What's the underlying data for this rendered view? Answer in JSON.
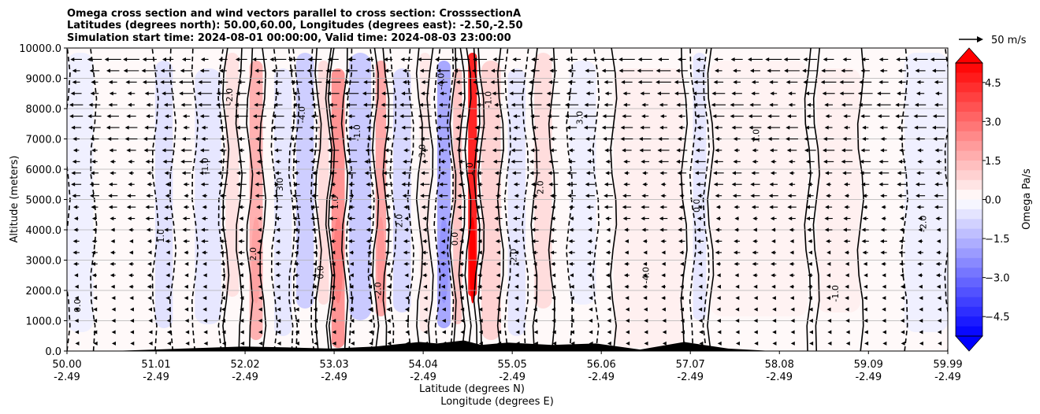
{
  "chart_data": {
    "type": "heatmap",
    "title_lines": [
      "Omega cross section and wind vectors parallel to cross section: CrosssectionA",
      "Latitudes (degrees north): 50.00,60.00, Longitudes (degrees east): -2.50,-2.50",
      "Simulation start time: 2024-08-01 00:00:00, Valid time: 2024-08-03 23:00:00"
    ],
    "xlabel_line1": "Latitude (degrees N)",
    "xlabel_line2": "Longitude (degrees E)",
    "ylabel": "Altitude (meters)",
    "x_ticks": [
      {
        "lat": "50.00",
        "lon": "-2.49"
      },
      {
        "lat": "51.01",
        "lon": "-2.49"
      },
      {
        "lat": "52.02",
        "lon": "-2.49"
      },
      {
        "lat": "53.03",
        "lon": "-2.49"
      },
      {
        "lat": "54.04",
        "lon": "-2.49"
      },
      {
        "lat": "55.05",
        "lon": "-2.49"
      },
      {
        "lat": "56.06",
        "lon": "-2.49"
      },
      {
        "lat": "57.07",
        "lon": "-2.49"
      },
      {
        "lat": "58.08",
        "lon": "-2.49"
      },
      {
        "lat": "59.09",
        "lon": "-2.49"
      },
      {
        "lat": "59.99",
        "lon": "-2.49"
      }
    ],
    "xlim": [
      50.0,
      59.99
    ],
    "y_ticks": [
      "0.0",
      "1000.0",
      "2000.0",
      "3000.0",
      "4000.0",
      "5000.0",
      "6000.0",
      "7000.0",
      "8000.0",
      "9000.0",
      "10000.0"
    ],
    "ylim": [
      0,
      10000
    ],
    "grid": "horizontal",
    "colorbar": {
      "label": "Omega Pa/s",
      "range": [
        -5.25,
        5.25
      ],
      "tick_labels": [
        "4.5",
        "3.0",
        "1.5",
        "0.0",
        "−1.5",
        "−3.0",
        "−4.5"
      ],
      "extend": "both",
      "colors_low_to_high": [
        "#0000ff",
        "#ffffff",
        "#ff0000"
      ]
    },
    "quiver_key": {
      "label": "50 m/s"
    },
    "omega_bands": [
      {
        "lat_from": 50.0,
        "lat_to": 50.3,
        "value": -0.3
      },
      {
        "lat_from": 51.0,
        "lat_to": 51.2,
        "value": -0.6
      },
      {
        "lat_from": 51.45,
        "lat_to": 51.75,
        "value": -0.5
      },
      {
        "lat_from": 51.8,
        "lat_to": 51.95,
        "value": 0.6
      },
      {
        "lat_from": 52.07,
        "lat_to": 52.22,
        "value": 1.6
      },
      {
        "lat_from": 52.35,
        "lat_to": 52.55,
        "value": -0.5
      },
      {
        "lat_from": 52.6,
        "lat_to": 52.8,
        "value": -1.0
      },
      {
        "lat_from": 52.85,
        "lat_to": 52.97,
        "value": 0.7
      },
      {
        "lat_from": 53.0,
        "lat_to": 53.15,
        "value": 2.2
      },
      {
        "lat_from": 53.2,
        "lat_to": 53.45,
        "value": -1.1
      },
      {
        "lat_from": 53.5,
        "lat_to": 53.62,
        "value": 1.8
      },
      {
        "lat_from": 53.7,
        "lat_to": 53.9,
        "value": -0.8
      },
      {
        "lat_from": 54.0,
        "lat_to": 54.12,
        "value": 0.5
      },
      {
        "lat_from": 54.2,
        "lat_to": 54.35,
        "value": -1.8
      },
      {
        "lat_from": 54.38,
        "lat_to": 54.48,
        "value": 1.2
      },
      {
        "lat_from": 54.55,
        "lat_to": 54.65,
        "value": 4.5
      },
      {
        "lat_from": 54.7,
        "lat_to": 54.92,
        "value": 0.9
      },
      {
        "lat_from": 55.0,
        "lat_to": 55.2,
        "value": -0.5
      },
      {
        "lat_from": 55.3,
        "lat_to": 55.5,
        "value": 0.7
      },
      {
        "lat_from": 55.7,
        "lat_to": 56.0,
        "value": -0.3
      },
      {
        "lat_from": 56.2,
        "lat_to": 57.0,
        "value": 0.3
      },
      {
        "lat_from": 57.1,
        "lat_to": 57.25,
        "value": -0.5
      },
      {
        "lat_from": 57.3,
        "lat_to": 58.4,
        "value": 0.25
      },
      {
        "lat_from": 58.5,
        "lat_to": 59.0,
        "value": 0.3
      },
      {
        "lat_from": 59.5,
        "lat_to": 59.99,
        "value": -0.3
      }
    ],
    "contour_labels": [
      "0.0",
      "1.0",
      "-1.0",
      "-2.0",
      "2.0",
      "3.0",
      "-4.0"
    ],
    "terrain_lat": [
      50.0,
      50.5,
      51.0,
      51.5,
      52.0,
      52.5,
      53.0,
      53.5,
      54.0,
      54.2,
      54.5,
      54.7,
      55.0,
      55.5,
      56.0,
      56.5,
      57.0,
      57.5,
      58.0,
      59.99
    ],
    "terrain_alt": [
      0,
      0,
      50,
      100,
      150,
      120,
      80,
      150,
      300,
      250,
      350,
      200,
      280,
      200,
      250,
      50,
      300,
      80,
      0,
      0
    ]
  }
}
